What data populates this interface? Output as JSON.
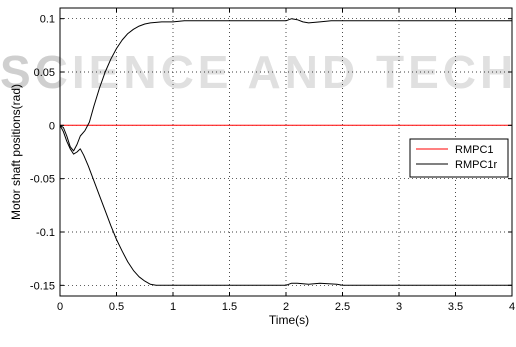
{
  "watermark": {
    "text": "SCIENCE AND TECHNOLOGY",
    "color": "#cfcfcf"
  },
  "chart_data": {
    "type": "line",
    "xlabel": "Time(s)",
    "ylabel": "Motor shaft positions(rad)",
    "xlim": [
      0,
      4
    ],
    "ylim": [
      -0.16,
      0.11
    ],
    "xticks": [
      0,
      0.5,
      1,
      1.5,
      2,
      2.5,
      3,
      3.5,
      4
    ],
    "xtick_labels": [
      "0",
      "0.5",
      "1",
      "1.5",
      "2",
      "2.5",
      "3",
      "3.5",
      "4"
    ],
    "yticks": [
      -0.15,
      -0.1,
      -0.05,
      0,
      0.05,
      0.1
    ],
    "ytick_labels": [
      "-0.15",
      "-0.1",
      "-0.05",
      "0",
      "0.05",
      "0.1"
    ],
    "grid": true,
    "legend_position": "center-right",
    "series": [
      {
        "name": "RMPC1",
        "color": "#ff0000",
        "points": [
          [
            0,
            0
          ],
          [
            4,
            0
          ]
        ]
      },
      {
        "name": "RMPC1r",
        "color": "#000000",
        "points": [
          [
            0,
            0
          ],
          [
            0.03,
            -0.002
          ],
          [
            0.06,
            -0.01
          ],
          [
            0.09,
            -0.02
          ],
          [
            0.12,
            -0.024
          ],
          [
            0.15,
            -0.018
          ],
          [
            0.18,
            -0.01
          ],
          [
            0.22,
            -0.005
          ],
          [
            0.26,
            0.003
          ],
          [
            0.3,
            0.018
          ],
          [
            0.35,
            0.035
          ],
          [
            0.4,
            0.05
          ],
          [
            0.45,
            0.062
          ],
          [
            0.5,
            0.072
          ],
          [
            0.55,
            0.08
          ],
          [
            0.6,
            0.086
          ],
          [
            0.65,
            0.09
          ],
          [
            0.7,
            0.093
          ],
          [
            0.75,
            0.095
          ],
          [
            0.8,
            0.096
          ],
          [
            0.9,
            0.097
          ],
          [
            1.0,
            0.097
          ],
          [
            1.1,
            0.098
          ],
          [
            1.5,
            0.098
          ],
          [
            2.0,
            0.098
          ],
          [
            2.05,
            0.1
          ],
          [
            2.1,
            0.099
          ],
          [
            2.15,
            0.097
          ],
          [
            2.2,
            0.096
          ],
          [
            2.3,
            0.097
          ],
          [
            2.4,
            0.098
          ],
          [
            2.5,
            0.098
          ],
          [
            3.0,
            0.098
          ],
          [
            4.0,
            0.098
          ]
        ]
      },
      {
        "name": "",
        "color": "#000000",
        "points": [
          [
            0,
            0
          ],
          [
            0.03,
            -0.006
          ],
          [
            0.06,
            -0.015
          ],
          [
            0.09,
            -0.022
          ],
          [
            0.12,
            -0.027
          ],
          [
            0.15,
            -0.025
          ],
          [
            0.18,
            -0.022
          ],
          [
            0.21,
            -0.028
          ],
          [
            0.25,
            -0.038
          ],
          [
            0.3,
            -0.052
          ],
          [
            0.35,
            -0.066
          ],
          [
            0.4,
            -0.08
          ],
          [
            0.45,
            -0.094
          ],
          [
            0.5,
            -0.107
          ],
          [
            0.55,
            -0.118
          ],
          [
            0.6,
            -0.128
          ],
          [
            0.65,
            -0.136
          ],
          [
            0.7,
            -0.142
          ],
          [
            0.75,
            -0.146
          ],
          [
            0.8,
            -0.149
          ],
          [
            0.85,
            -0.15
          ],
          [
            0.9,
            -0.15
          ],
          [
            1.0,
            -0.15
          ],
          [
            1.5,
            -0.15
          ],
          [
            2.0,
            -0.15
          ],
          [
            2.05,
            -0.148
          ],
          [
            2.1,
            -0.148
          ],
          [
            2.2,
            -0.149
          ],
          [
            2.3,
            -0.148
          ],
          [
            2.45,
            -0.149
          ],
          [
            2.5,
            -0.15
          ],
          [
            3.0,
            -0.15
          ],
          [
            4.0,
            -0.15
          ]
        ]
      }
    ]
  }
}
